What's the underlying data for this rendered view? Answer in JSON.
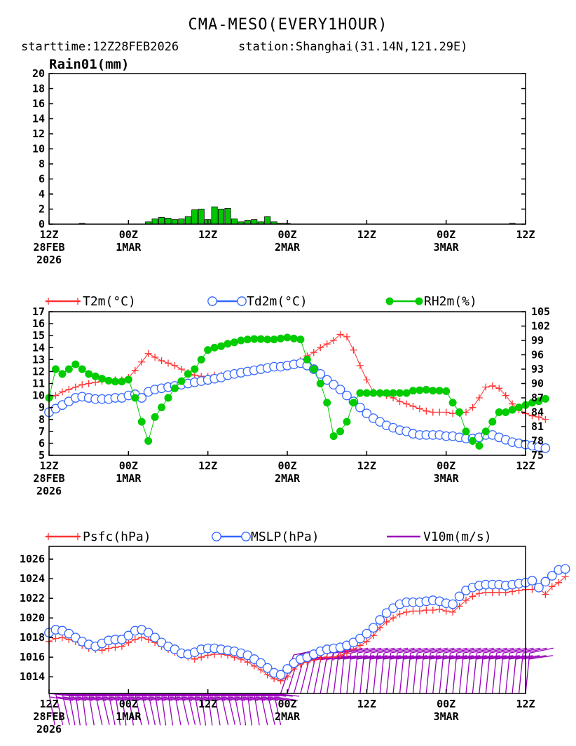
{
  "header": {
    "title": "CMA-MESO(EVERY1HOUR)",
    "subtitle_start": "starttime:12Z28FEB2026",
    "subtitle_station": "station:Shanghai(31.14N,121.29E)"
  },
  "time_axis": {
    "hours_start": 0,
    "hours_end": 72,
    "ticks": [
      {
        "hour": 0,
        "l1": "12Z",
        "l2": "28FEB",
        "l3": "2026"
      },
      {
        "hour": 12,
        "l1": "00Z",
        "l2": "1MAR",
        "l3": ""
      },
      {
        "hour": 24,
        "l1": "12Z",
        "l2": "",
        "l3": ""
      },
      {
        "hour": 36,
        "l1": "00Z",
        "l2": "2MAR",
        "l3": ""
      },
      {
        "hour": 48,
        "l1": "12Z",
        "l2": "",
        "l3": ""
      },
      {
        "hour": 60,
        "l1": "00Z",
        "l2": "3MAR",
        "l3": ""
      },
      {
        "hour": 72,
        "l1": "12Z",
        "l2": "",
        "l3": ""
      }
    ]
  },
  "chart_data": [
    {
      "type": "bar",
      "id": "rain",
      "title": "Rain01(mm)",
      "ylim": [
        0,
        20
      ],
      "yticks": [
        0,
        2,
        4,
        6,
        8,
        10,
        12,
        14,
        16,
        18,
        20
      ],
      "bar_color": "#00c800",
      "x": [
        5,
        15,
        16,
        17,
        18,
        19,
        20,
        21,
        22,
        23,
        24,
        25,
        26,
        27,
        28,
        29,
        30,
        31,
        32,
        33,
        34,
        35,
        36,
        70
      ],
      "values": [
        0.1,
        0.3,
        0.7,
        0.9,
        0.8,
        0.6,
        0.7,
        1.0,
        1.9,
        2.0,
        0.6,
        2.3,
        2.0,
        2.1,
        0.7,
        0.3,
        0.5,
        0.6,
        0.3,
        1.0,
        0.3,
        0.05,
        0.05,
        0.05
      ]
    },
    {
      "type": "line",
      "id": "thermo",
      "x_start": 0,
      "x_step": 1,
      "left_axis": {
        "ylim": [
          5,
          17
        ],
        "yticks": [
          5,
          6,
          7,
          8,
          9,
          10,
          11,
          12,
          13,
          14,
          15,
          16,
          17
        ]
      },
      "right_axis": {
        "ylim": [
          75,
          105
        ],
        "yticks": [
          75,
          78,
          81,
          84,
          87,
          90,
          93,
          96,
          99,
          102,
          105
        ]
      },
      "series": [
        {
          "name": "T2m",
          "legend": "T2m(°C)",
          "color": "#ff3333",
          "marker": "plus",
          "axis": "left",
          "values": [
            9.7,
            10.0,
            10.3,
            10.5,
            10.7,
            10.9,
            11.0,
            11.1,
            11.2,
            11.2,
            11.3,
            11.3,
            11.5,
            12.1,
            12.8,
            13.5,
            13.2,
            12.9,
            12.7,
            12.5,
            12.2,
            11.9,
            11.7,
            11.6,
            11.6,
            11.7,
            11.7,
            11.8,
            11.8,
            11.9,
            12.0,
            12.1,
            12.2,
            12.3,
            12.4,
            12.5,
            12.6,
            12.7,
            12.9,
            13.3,
            13.6,
            14.0,
            14.3,
            14.6,
            15.1,
            14.9,
            13.8,
            12.5,
            11.3,
            10.3,
            10.1,
            10.0,
            9.8,
            9.5,
            9.3,
            9.1,
            8.9,
            8.7,
            8.6,
            8.6,
            8.6,
            8.5,
            8.5,
            8.6,
            9.0,
            9.8,
            10.7,
            10.8,
            10.6,
            10.0,
            9.3,
            8.8,
            8.5,
            8.3,
            8.2,
            8.0
          ]
        },
        {
          "name": "Td2m",
          "legend": "Td2m(°C)",
          "color": "#3366ff",
          "marker": "circle",
          "axis": "left",
          "values": [
            8.6,
            8.9,
            9.2,
            9.5,
            9.8,
            9.9,
            9.8,
            9.7,
            9.7,
            9.7,
            9.8,
            9.8,
            10.0,
            10.1,
            9.8,
            10.3,
            10.5,
            10.6,
            10.7,
            10.8,
            10.9,
            11.0,
            11.1,
            11.2,
            11.3,
            11.4,
            11.5,
            11.7,
            11.8,
            11.9,
            12.0,
            12.1,
            12.2,
            12.3,
            12.4,
            12.4,
            12.5,
            12.6,
            12.7,
            12.5,
            12.2,
            11.8,
            11.3,
            10.9,
            10.5,
            10.0,
            9.5,
            9.0,
            8.5,
            8.1,
            7.8,
            7.5,
            7.3,
            7.1,
            7.0,
            6.8,
            6.7,
            6.7,
            6.7,
            6.7,
            6.6,
            6.6,
            6.5,
            6.4,
            6.4,
            6.5,
            6.7,
            6.7,
            6.5,
            6.3,
            6.1,
            6.0,
            5.9,
            5.8,
            5.7,
            5.6
          ]
        },
        {
          "name": "RH2m",
          "legend": "RH2m(%)",
          "color": "#00cc00",
          "marker": "dot",
          "axis": "right",
          "values": [
            87,
            93,
            92,
            93,
            94,
            93,
            92,
            91.5,
            91,
            90.6,
            90.4,
            90.4,
            90.8,
            87,
            82,
            78,
            83,
            85,
            87,
            89,
            90.5,
            92,
            93,
            95,
            97,
            97.5,
            97.8,
            98.3,
            98.6,
            99,
            99.2,
            99.3,
            99.3,
            99.2,
            99.2,
            99.4,
            99.6,
            99.4,
            99.2,
            95,
            93,
            90,
            86,
            79,
            80,
            82,
            86,
            88,
            88,
            88,
            88,
            88,
            88,
            88,
            88,
            88.5,
            88.6,
            88.7,
            88.5,
            88.5,
            88.4,
            86,
            84,
            80,
            78,
            77,
            80,
            82,
            84,
            84,
            84.5,
            85,
            85.5,
            86,
            86.3,
            86.8
          ]
        }
      ]
    },
    {
      "type": "line",
      "id": "pressure",
      "x_start": 0,
      "x_step": 1,
      "ylim": [
        1012.3,
        1027.3
      ],
      "yticks": [
        1014,
        1016,
        1018,
        1020,
        1022,
        1024,
        1026
      ],
      "series": [
        {
          "name": "Psfc",
          "legend": "Psfc(hPa)",
          "color": "#ff3333",
          "marker": "plus",
          "values": [
            1017.6,
            1017.9,
            1018.0,
            1017.8,
            1017.6,
            1017.2,
            1016.9,
            1016.8,
            1016.7,
            1016.9,
            1017.0,
            1017.1,
            1017.5,
            1017.8,
            1018.0,
            1017.8,
            1017.5,
            1017.1,
            1016.8,
            1016.5,
            1016.2,
            1016.0,
            1015.8,
            1016.0,
            1016.2,
            1016.3,
            1016.3,
            1016.2,
            1016.0,
            1015.8,
            1015.5,
            1015.1,
            1014.7,
            1014.2,
            1013.8,
            1013.6,
            1014.0,
            1014.8,
            1015.3,
            1015.5,
            1015.7,
            1015.9,
            1016.0,
            1016.0,
            1016.2,
            1016.4,
            1016.8,
            1017.2,
            1017.6,
            1018.2,
            1019.0,
            1019.6,
            1020.0,
            1020.4,
            1020.6,
            1020.7,
            1020.7,
            1020.8,
            1020.8,
            1020.9,
            1020.7,
            1020.6,
            1021.2,
            1021.8,
            1022.2,
            1022.5,
            1022.6,
            1022.6,
            1022.6,
            1022.6,
            1022.7,
            1022.8,
            1022.9,
            1022.9,
            1023.1,
            1022.4,
            1023.2,
            1023.6,
            1024.2
          ]
        },
        {
          "name": "MSLP",
          "legend": "MSLP(hPa)",
          "color": "#3366ff",
          "marker": "circle",
          "values": [
            1018.5,
            1018.8,
            1018.7,
            1018.4,
            1018.0,
            1017.6,
            1017.3,
            1017.1,
            1017.4,
            1017.7,
            1017.8,
            1017.8,
            1018.2,
            1018.7,
            1018.8,
            1018.5,
            1018.0,
            1017.5,
            1017.1,
            1016.8,
            1016.4,
            1016.3,
            1016.5,
            1016.8,
            1016.9,
            1016.9,
            1016.8,
            1016.7,
            1016.6,
            1016.4,
            1016.2,
            1015.8,
            1015.4,
            1014.9,
            1014.4,
            1014.2,
            1014.8,
            1015.4,
            1015.8,
            1016.0,
            1016.3,
            1016.6,
            1016.8,
            1016.9,
            1017.0,
            1017.2,
            1017.5,
            1017.9,
            1018.4,
            1019.0,
            1019.8,
            1020.5,
            1021.0,
            1021.4,
            1021.6,
            1021.6,
            1021.6,
            1021.7,
            1021.8,
            1021.7,
            1021.5,
            1021.4,
            1022.2,
            1022.8,
            1023.1,
            1023.3,
            1023.4,
            1023.4,
            1023.4,
            1023.3,
            1023.4,
            1023.5,
            1023.6,
            1023.8,
            1023.1,
            1023.7,
            1024.3,
            1024.9,
            1025.0
          ]
        },
        {
          "name": "V10m",
          "legend": "V10m(m/s)",
          "color": "#9900bb",
          "marker": "barb"
        }
      ]
    }
  ]
}
